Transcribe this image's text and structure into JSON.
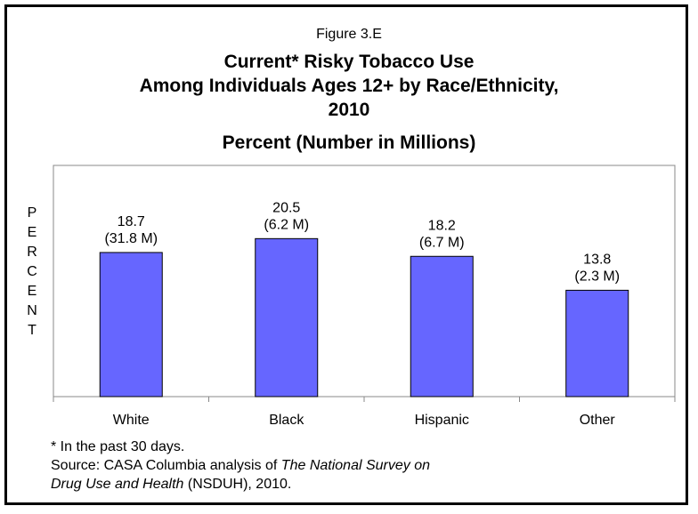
{
  "figure_label": "Figure 3.E",
  "title_lines": [
    "Current* Risky Tobacco Use",
    "Among Individuals Ages 12+ by Race/Ethnicity,",
    "2010",
    "Percent (Number in Millions)"
  ],
  "chart_data": {
    "type": "bar",
    "categories": [
      "White",
      "Black",
      "Hispanic",
      "Other"
    ],
    "values": [
      18.7,
      20.5,
      18.2,
      13.8
    ],
    "value_labels": [
      "18.7",
      "20.5",
      "18.2",
      "13.8"
    ],
    "secondary_labels": [
      "(31.8 M)",
      "(6.2 M)",
      "(6.7 M)",
      "(2.3 M)"
    ],
    "ylabel": "PERCENT",
    "ylim": [
      0,
      30
    ],
    "grid": false,
    "bar_color": "#6666FF"
  },
  "footnotes": {
    "asterisk": "* In the past 30 days.",
    "source_prefix": "Source:  CASA Columbia analysis of ",
    "source_italic_1": "The National Survey on",
    "source_italic_2": "Drug Use and Health",
    "source_suffix": " (NSDUH), 2010."
  }
}
